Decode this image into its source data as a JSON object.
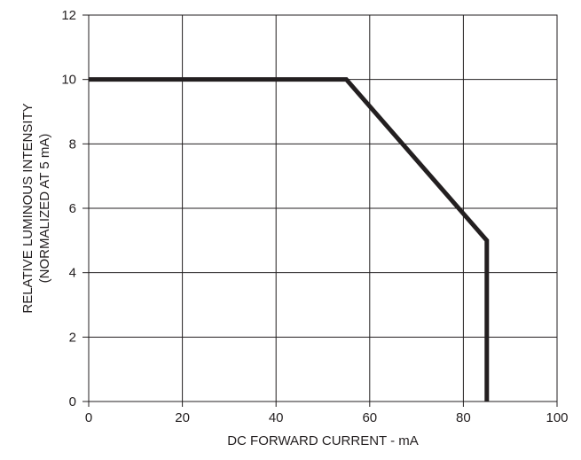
{
  "chart_data": {
    "type": "line",
    "title": "",
    "xlabel": "DC FORWARD CURRENT - mA",
    "ylabel_lines": [
      "RELATIVE LUMINOUS INTENSITY",
      "(NORMALIZED AT 5 mA)"
    ],
    "xlim": [
      0,
      100
    ],
    "ylim": [
      0,
      12
    ],
    "x_ticks": [
      0,
      20,
      40,
      60,
      80,
      100
    ],
    "y_ticks": [
      0,
      2,
      4,
      6,
      8,
      10,
      12
    ],
    "x_tick_labels": [
      "0",
      "20",
      "40",
      "60",
      "80",
      "100"
    ],
    "y_tick_labels": [
      "0",
      "2",
      "4",
      "6",
      "8",
      "10",
      "12"
    ],
    "grid": true,
    "legend": "none",
    "series": [
      {
        "x": [
          0,
          55,
          85,
          85
        ],
        "y": [
          10,
          10,
          5,
          0
        ]
      }
    ],
    "colors": {
      "line": "#231f20",
      "grid": "#231f20",
      "text": "#231f20"
    }
  }
}
